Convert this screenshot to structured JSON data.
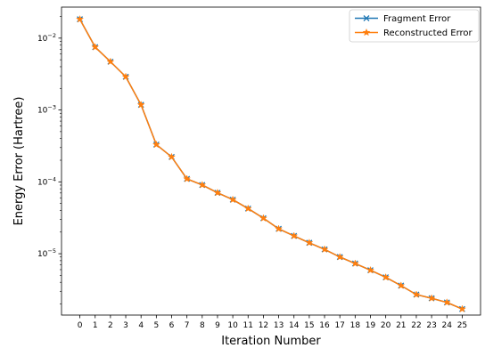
{
  "chart_data": {
    "type": "line",
    "xlabel": "Iteration Number",
    "ylabel": "Energy Error (Hartree)",
    "yscale": "log",
    "ylim": [
      1.4e-06,
      0.027
    ],
    "xlim": [
      -1.2,
      26.2
    ],
    "grid": false,
    "legend_position": "top-right",
    "x": [
      0,
      1,
      2,
      3,
      4,
      5,
      6,
      7,
      8,
      9,
      10,
      11,
      12,
      13,
      14,
      15,
      16,
      17,
      18,
      19,
      20,
      21,
      22,
      23,
      24,
      25
    ],
    "x_tick_labels": [
      "0",
      "1",
      "2",
      "3",
      "4",
      "5",
      "6",
      "7",
      "8",
      "9",
      "10",
      "11",
      "12",
      "13",
      "14",
      "15",
      "16",
      "17",
      "18",
      "19",
      "20",
      "21",
      "22",
      "23",
      "24",
      "25"
    ],
    "y_ticks": [
      1e-05,
      0.0001,
      0.001,
      0.01
    ],
    "y_tick_labels": [
      {
        "base": "10",
        "exp": "−5"
      },
      {
        "base": "10",
        "exp": "−4"
      },
      {
        "base": "10",
        "exp": "−3"
      },
      {
        "base": "10",
        "exp": "−2"
      }
    ],
    "series": [
      {
        "name": "Fragment Error",
        "color": "#1f77b4",
        "marker": "x",
        "values": [
          0.0183,
          0.0075,
          0.0047,
          0.0029,
          0.00118,
          0.00033,
          0.000222,
          0.00011,
          9.05e-05,
          7.05e-05,
          5.65e-05,
          4.25e-05,
          3.12e-05,
          2.22e-05,
          1.77e-05,
          1.42e-05,
          1.15e-05,
          9e-06,
          7.3e-06,
          5.9e-06,
          4.7e-06,
          3.6e-06,
          2.7e-06,
          2.4e-06,
          2.1e-06,
          1.7e-06
        ]
      },
      {
        "name": "Reconstructed Error",
        "color": "#ff7f0e",
        "marker": "star",
        "values": [
          0.0183,
          0.0075,
          0.0047,
          0.0029,
          0.00118,
          0.00033,
          0.000222,
          0.00011,
          9.05e-05,
          7.05e-05,
          5.65e-05,
          4.25e-05,
          3.12e-05,
          2.22e-05,
          1.77e-05,
          1.42e-05,
          1.15e-05,
          9e-06,
          7.3e-06,
          5.9e-06,
          4.7e-06,
          3.6e-06,
          2.7e-06,
          2.4e-06,
          2.1e-06,
          1.7e-06
        ]
      }
    ]
  }
}
